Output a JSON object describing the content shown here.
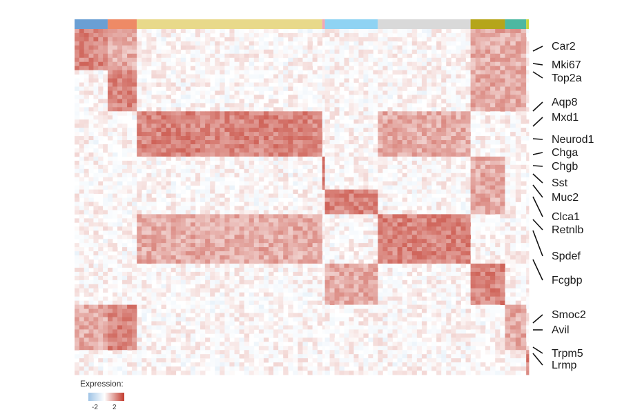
{
  "chart_data": {
    "type": "heatmap",
    "title": "",
    "xlabel": "",
    "ylabel": "",
    "cluster_bar": [
      {
        "color": "#6a9fd4",
        "cells": 100
      },
      {
        "color": "#ee8a66",
        "cells": 88
      },
      {
        "color": "#e8d98a",
        "cells": 560
      },
      {
        "color": "#f3a6b5",
        "cells": 8
      },
      {
        "color": "#8fd3f3",
        "cells": 160
      },
      {
        "color": "#d9d9d9",
        "cells": 280
      },
      {
        "color": "#b5a51a",
        "cells": 104
      },
      {
        "color": "#4db8a1",
        "cells": 64
      },
      {
        "color": "#c7d63b",
        "cells": 8
      }
    ],
    "gene_blocks": [
      {
        "rows": 40,
        "high": [
          0,
          1,
          6,
          7
        ]
      },
      {
        "rows": 40,
        "high": [
          1,
          6,
          7
        ]
      },
      {
        "rows": 44,
        "high": [
          2,
          5
        ]
      },
      {
        "rows": 32,
        "high": [
          3,
          6
        ]
      },
      {
        "rows": 24,
        "high": [
          4,
          6
        ]
      },
      {
        "rows": 48,
        "high": [
          5,
          2
        ]
      },
      {
        "rows": 40,
        "high": [
          6,
          4
        ]
      },
      {
        "rows": 44,
        "high": [
          1,
          7,
          0
        ]
      },
      {
        "rows": 24,
        "high": [
          8
        ]
      }
    ],
    "genes": [
      "Car2",
      "Mki67",
      "Top2a",
      "Aqp8",
      "Mxd1",
      "Neurod1",
      "Chga",
      "Chgb",
      "Sst",
      "Muc2",
      "Clca1",
      "Retnlb",
      "Spdef",
      "Fcgbp",
      "Smoc2",
      "Avil",
      "Trpm5",
      "Lrmp"
    ],
    "colorscale": {
      "low": "#2166ac",
      "mid": "#ffffff",
      "high": "#b2182b",
      "min": -2,
      "max": 2
    },
    "legend": {
      "title": "Expression:",
      "ticks": [
        "-2",
        "2"
      ],
      "placement": "bottom-left"
    }
  }
}
